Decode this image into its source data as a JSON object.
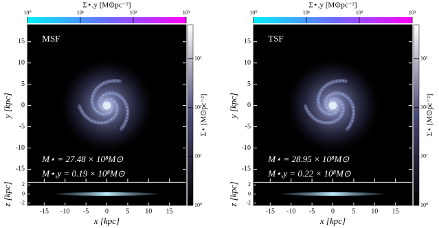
{
  "chart_data": [
    {
      "type": "image",
      "label": "MSF",
      "annotations": [
        "M⋆ = 27.48 × 10⁸M⊙",
        "M⋆,y = 0.19 × 10⁸M⊙"
      ],
      "xlabel": "x [kpc]",
      "ylabel": "y [kpc]",
      "zlabel": "z [kpc]",
      "xlim": [
        -19,
        19
      ],
      "xticks": [
        -15,
        -10,
        -5,
        0,
        5,
        10,
        15
      ],
      "ylim": [
        -18,
        19
      ],
      "yticks": [
        -15,
        -10,
        -5,
        0,
        5,
        10,
        15
      ],
      "zlim": [
        -2.5,
        2.5
      ],
      "zticks": [
        -2,
        0,
        2
      ],
      "colorbar_top": {
        "label": "Σ⋆,y [M⊙pc⁻²]",
        "lim": [
          1,
          1000
        ],
        "log": true,
        "ticks": [
          {
            "value": 1,
            "label": "10⁰"
          },
          {
            "value": 10,
            "label": "10¹"
          },
          {
            "value": 100,
            "label": "10²"
          },
          {
            "value": 1000,
            "label": "10³"
          }
        ],
        "colors": [
          "#00f0ff",
          "#6a6cff",
          "#ff00ff"
        ]
      },
      "colorbar_right": {
        "label": "Σ⋆ [M⊙pc⁻²]",
        "lim": [
          1,
          5000
        ],
        "log": true,
        "ticks": [
          {
            "value": 1,
            "label": "10⁰"
          },
          {
            "value": 10,
            "label": "10¹"
          },
          {
            "value": 100,
            "label": "10²"
          },
          {
            "value": 1000,
            "label": "10³"
          }
        ],
        "colors": [
          "#000000",
          "#4a4a78",
          "#ffffff"
        ]
      }
    },
    {
      "type": "image",
      "label": "TSF",
      "annotations": [
        "M⋆ = 28.95 × 10⁸M⊙",
        "M⋆,y = 0.22 × 10⁸M⊙"
      ],
      "xlabel": "x [kpc]",
      "ylabel": "y [kpc]",
      "zlabel": "z [kpc]",
      "xlim": [
        -19,
        19
      ],
      "xticks": [
        -15,
        -10,
        -5,
        0,
        5,
        10,
        15
      ],
      "ylim": [
        -18,
        19
      ],
      "yticks": [
        -15,
        -10,
        -5,
        0,
        5,
        10,
        15
      ],
      "zlim": [
        -2.5,
        2.5
      ],
      "zticks": [
        -2,
        0,
        2
      ],
      "colorbar_top": {
        "label": "Σ⋆,y [M⊙pc⁻²]",
        "lim": [
          1,
          1000
        ],
        "log": true,
        "ticks": [
          {
            "value": 1,
            "label": "10⁰"
          },
          {
            "value": 10,
            "label": "10¹"
          },
          {
            "value": 100,
            "label": "10²"
          },
          {
            "value": 1000,
            "label": "10³"
          }
        ],
        "colors": [
          "#00f0ff",
          "#6a6cff",
          "#ff00ff"
        ]
      },
      "colorbar_right": {
        "label": "Σ⋆ [M⊙pc⁻²]",
        "lim": [
          1,
          5000
        ],
        "log": true,
        "ticks": [
          {
            "value": 1,
            "label": "10⁰"
          },
          {
            "value": 10,
            "label": "10¹"
          },
          {
            "value": 100,
            "label": "10²"
          },
          {
            "value": 1000,
            "label": "10³"
          }
        ],
        "colors": [
          "#000000",
          "#4a4a78",
          "#ffffff"
        ]
      }
    }
  ]
}
